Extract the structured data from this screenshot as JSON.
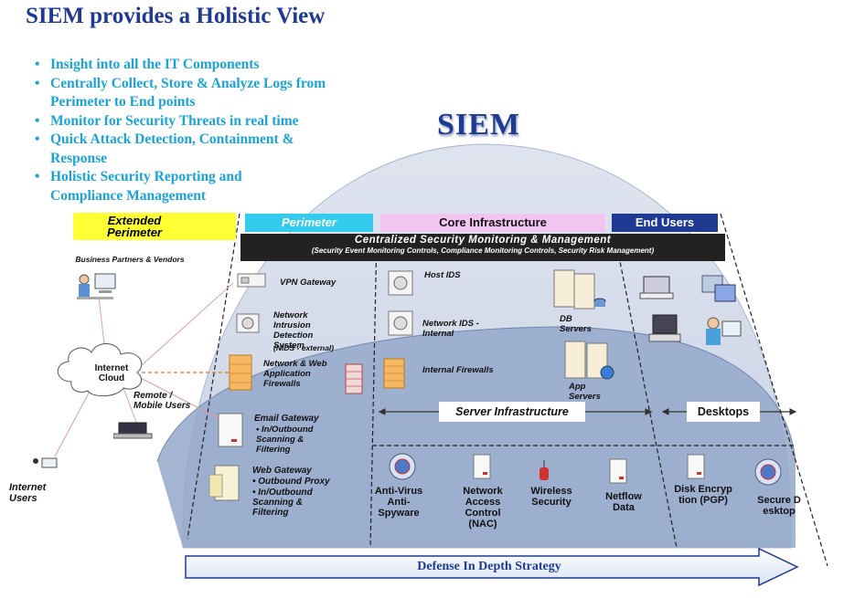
{
  "title": "SIEM provides a Holistic View",
  "bullets": [
    "Insight into all the IT Components",
    "Centrally Collect, Store & Analyze Logs from Perimeter to End points",
    "Monitor for Security Threats in real time",
    "Quick Attack Detection, Containment & Response",
    "Holistic Security Reporting and Compliance Management"
  ],
  "siem_label": "SIEM",
  "columns": {
    "extended_perimeter": "Extended Perimeter",
    "perimeter": "Perimeter",
    "core": "Core Infrastructure",
    "end_users": "End Users"
  },
  "central_bar": {
    "title": "Centralized Security Monitoring & Management",
    "subtitle": "(Security Event Monitoring Controls, Compliance  Monitoring Controls, Security Risk Management)"
  },
  "external": {
    "business_partners": "Business Partners & Vendors",
    "internet_cloud": "Internet Cloud",
    "remote_users": "Remote / Mobile Users",
    "internet_users": "Internet Users"
  },
  "perimeter_items": {
    "vpn": "VPN Gateway",
    "nids": "Network Intrusion Detection System",
    "nids_note": "(NIDS - external)",
    "waf": "Network & Web Application Firewalls",
    "email_title": "Email Gateway",
    "email_points": [
      "In/Outbound Scanning & Filtering"
    ],
    "web_title": "Web Gateway",
    "web_points": [
      "Outbound Proxy",
      "In/Outbound Scanning & Filtering"
    ]
  },
  "core_items": {
    "host_ids": "Host IDS",
    "network_ids": "Network IDS - Internal",
    "internal_fw": "Internal Firewalls",
    "db_servers": "DB Servers",
    "app_servers": "App Servers"
  },
  "server_infra": "Server Infrastructure",
  "desktops": "Desktops",
  "bottom_items": {
    "antivirus": "Anti-Virus Anti-Spyware",
    "nac": "Network Access Control (NAC)",
    "wireless": "Wireless Security",
    "netflow": "Netflow Data",
    "disk_enc": "Disk Encryption (PGP)",
    "secure_desktop": "Secure Desktop"
  },
  "footer_arrow": "Defense In Depth Strategy",
  "colors": {
    "title": "#1f3a93",
    "bullets": "#1aa3d6",
    "extended": "#ffff33",
    "perimeter": "#33ccee",
    "core": "#f2c4f0",
    "end_users": "#1f3a93",
    "dome_outer": "#d0d8e8",
    "dome_inner": "#8ea4c8"
  }
}
